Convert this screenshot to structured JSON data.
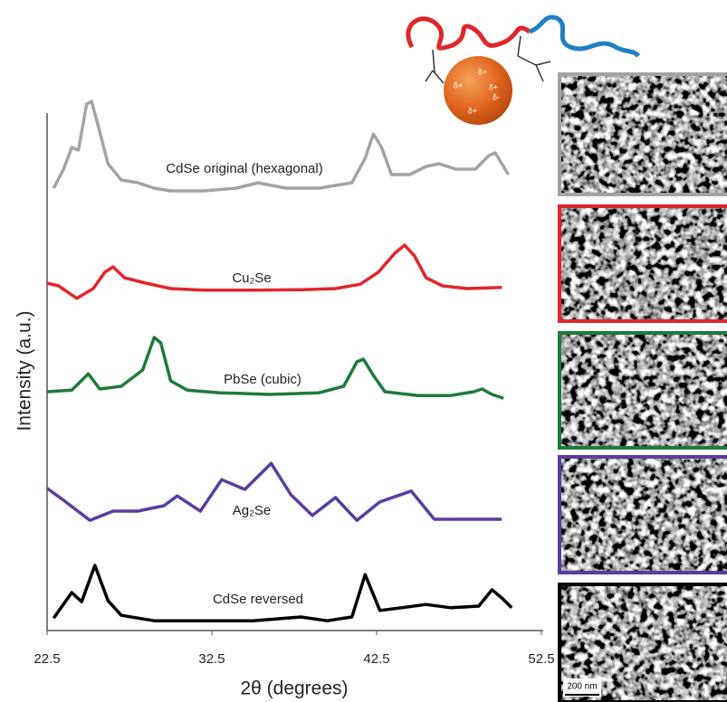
{
  "chart_data": {
    "type": "line",
    "x_label": "2θ (degrees)",
    "y_label": "Intensity (a.u.)",
    "xlim": [
      22.5,
      52.5
    ],
    "xticks": [
      22.5,
      32.5,
      42.5,
      52.5
    ],
    "ylim": [
      0,
      100
    ],
    "series": [
      {
        "name": "CdSe original (hexagonal)",
        "color": "#a3a3a3",
        "x": [
          22.9,
          23.5,
          24.0,
          24.4,
          24.9,
          25.2,
          25.6,
          26.2,
          27,
          28,
          29,
          30,
          32,
          34,
          35.3,
          37,
          39,
          41,
          41.8,
          42.3,
          42.8,
          43.4,
          44.5,
          45.5,
          46.3,
          47.3,
          48.5,
          49.3,
          49.7,
          50.1,
          50.5
        ],
        "values": [
          81.5,
          85,
          89,
          88.5,
          97,
          97.5,
          93,
          86,
          83,
          82.5,
          81.5,
          81,
          81,
          81.5,
          82.5,
          81.5,
          81.5,
          82.5,
          87,
          91.5,
          89,
          84,
          84,
          85.5,
          86,
          85,
          85,
          87.5,
          88,
          86,
          84
        ]
      },
      {
        "name": "Cu₂Se",
        "color": "#e0262b",
        "x": [
          22.5,
          23.2,
          24.3,
          25.3,
          26.0,
          26.5,
          27.2,
          28.5,
          30,
          32,
          35,
          38,
          40,
          41.5,
          42.6,
          43.6,
          44.2,
          44.8,
          45.5,
          46.5,
          48,
          50.1
        ],
        "values": [
          64,
          63.5,
          61.2,
          63,
          66,
          67,
          65,
          64,
          63,
          62.7,
          62.7,
          62.8,
          63,
          63.8,
          66,
          69.5,
          71,
          69,
          65,
          63.5,
          63,
          63.2
        ]
      },
      {
        "name": "PbSe  (cubic)",
        "color": "#1e7a3c",
        "x": [
          22.5,
          24,
          25,
          25.7,
          27,
          28.3,
          29.0,
          29.4,
          30,
          31,
          33,
          36,
          39,
          40.5,
          41.3,
          41.7,
          42.3,
          43,
          45,
          47,
          48.4,
          48.9,
          49.5,
          50.2
        ],
        "values": [
          44,
          44.3,
          47.3,
          44.5,
          45,
          48,
          54,
          53,
          46,
          44.3,
          43.8,
          43.5,
          43.8,
          45,
          49.5,
          50,
          47,
          44,
          43.3,
          43.3,
          44,
          44.5,
          43.5,
          42.8
        ]
      },
      {
        "name": "Ag₂Se",
        "color": "#5b3da0",
        "x": [
          22.5,
          23.5,
          25.1,
          26.5,
          28,
          29.6,
          30.4,
          31.8,
          33.1,
          34.5,
          36.1,
          37.3,
          38.6,
          40,
          41.3,
          42.7,
          44.6,
          46,
          48,
          50.1
        ],
        "values": [
          26.2,
          24,
          20.3,
          22,
          22,
          23,
          24.8,
          22,
          27.8,
          26,
          30.8,
          25,
          21.2,
          24.5,
          20.3,
          23.7,
          25.7,
          20.5,
          20.5,
          20.5
        ]
      },
      {
        "name": "CdSe reversed",
        "color": "#000000",
        "x": [
          22.9,
          24,
          24.6,
          25.4,
          26.2,
          27,
          29,
          32,
          35,
          37.9,
          39.5,
          41,
          41.8,
          42.7,
          44,
          45.5,
          47,
          48.7,
          49.5,
          50.1,
          50.7
        ],
        "values": [
          2.3,
          7,
          5.3,
          12,
          5.5,
          2.8,
          1.8,
          1.8,
          1.8,
          2.5,
          1.8,
          2.5,
          10.3,
          3.7,
          4.2,
          4.8,
          4.2,
          4.5,
          7.5,
          6,
          4.2
        ]
      }
    ]
  },
  "inset": {
    "charges": [
      "δ+",
      "δ+",
      "δ+",
      "δ-",
      "δ+"
    ],
    "scale_bar": "200 nm"
  }
}
